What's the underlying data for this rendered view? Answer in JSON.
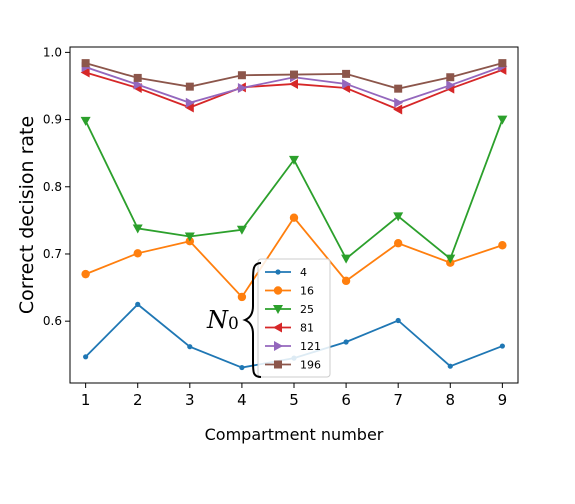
{
  "chart_data": {
    "type": "line",
    "xlabel": "Compartment number",
    "ylabel": "Correct decision rate",
    "x": [
      1,
      2,
      3,
      4,
      5,
      6,
      7,
      8,
      9
    ],
    "xticks": [
      1,
      2,
      3,
      4,
      5,
      6,
      7,
      8,
      9
    ],
    "yticks": [
      0.6,
      0.7,
      0.8,
      0.9,
      1.0
    ],
    "ytick_labels": [
      "0.6",
      "0.7",
      "0.8",
      "0.9",
      "1.0"
    ],
    "xlim": [
      0.7,
      9.3
    ],
    "ylim": [
      0.508,
      1.008
    ],
    "grid": false,
    "legend_placement": "lower-center",
    "legend_annotation": {
      "main": "N",
      "sub": "0"
    },
    "series": [
      {
        "name": "4",
        "color": "#1f77b4",
        "marker": "point",
        "values": [
          0.547,
          0.625,
          0.562,
          0.531,
          0.545,
          0.569,
          0.601,
          0.533,
          0.563
        ]
      },
      {
        "name": "16",
        "color": "#ff7f0e",
        "marker": "circle",
        "values": [
          0.67,
          0.701,
          0.719,
          0.636,
          0.754,
          0.66,
          0.716,
          0.687,
          0.713
        ]
      },
      {
        "name": "25",
        "color": "#2ca02c",
        "marker": "triangle-down",
        "values": [
          0.898,
          0.738,
          0.726,
          0.736,
          0.84,
          0.693,
          0.756,
          0.693,
          0.9
        ]
      },
      {
        "name": "81",
        "color": "#d62728",
        "marker": "triangle-left",
        "values": [
          0.97,
          0.947,
          0.918,
          0.948,
          0.953,
          0.947,
          0.915,
          0.946,
          0.974
        ]
      },
      {
        "name": "121",
        "color": "#9467bd",
        "marker": "triangle-right",
        "values": [
          0.978,
          0.952,
          0.925,
          0.947,
          0.963,
          0.953,
          0.925,
          0.951,
          0.979
        ]
      },
      {
        "name": "196",
        "color": "#8c564b",
        "marker": "square",
        "values": [
          0.984,
          0.962,
          0.949,
          0.966,
          0.967,
          0.968,
          0.946,
          0.963,
          0.984
        ]
      }
    ]
  }
}
